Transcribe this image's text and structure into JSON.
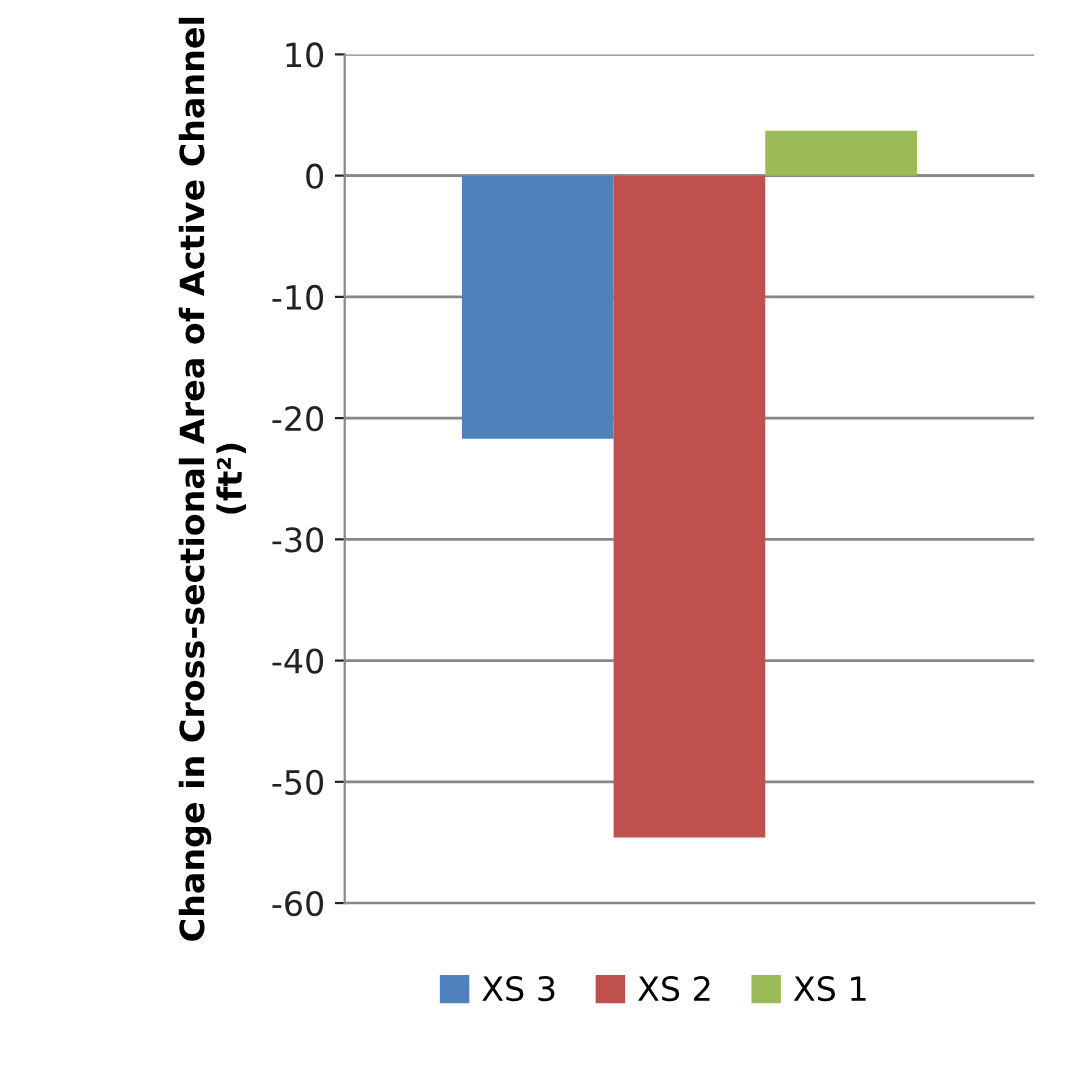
{
  "chart_data": {
    "type": "bar",
    "categories": [
      null
    ],
    "series": [
      {
        "name": "XS 3",
        "color": "#4f81bd",
        "values": [
          -21.7
        ]
      },
      {
        "name": "XS 2",
        "color": "#c0504d",
        "values": [
          -54.6
        ]
      },
      {
        "name": "XS 1",
        "color": "#9bbb59",
        "values": [
          3.7
        ]
      }
    ],
    "ylabel": "Change in Cross-sectional Area of Active Channel (ft²)",
    "ylim": [
      -60,
      10
    ],
    "yticks": [
      -60,
      -50,
      -40,
      -30,
      -20,
      -10,
      0,
      10
    ],
    "grid": "y",
    "legend": "bottom"
  }
}
